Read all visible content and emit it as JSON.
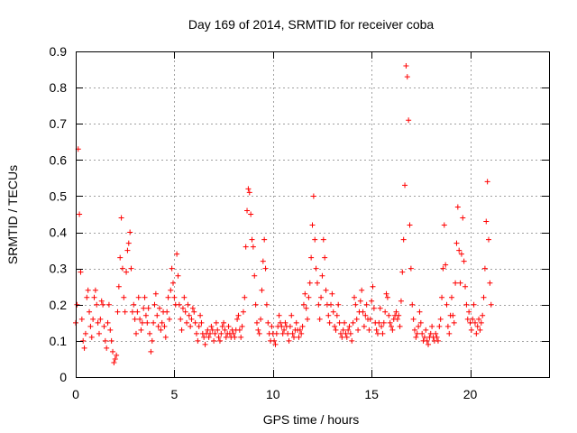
{
  "chart_data": {
    "type": "scatter",
    "title": "Day 169 of 2014, SRMTID for receiver coba",
    "xlabel": "GPS time / hours",
    "ylabel": "SRMTID / TECUs",
    "xlim": [
      0,
      24
    ],
    "ylim": [
      0,
      0.9
    ],
    "xticks": [
      0,
      5,
      10,
      15,
      20
    ],
    "yticks": [
      0,
      0.1,
      0.2,
      0.3,
      0.4,
      0.5,
      0.6,
      0.7,
      0.8,
      0.9
    ],
    "xtick_labels": [
      "0",
      "5",
      "10",
      "15",
      "20"
    ],
    "ytick_labels": [
      "0",
      "0.1",
      "0.2",
      "0.3",
      "0.4",
      "0.5",
      "0.6",
      "0.7",
      "0.8",
      "0.9"
    ],
    "grid": true,
    "marker": "+",
    "series": [
      {
        "name": "SRMTID",
        "color": "#ff0000",
        "x_start": 0.0,
        "x_step": 0.0625,
        "values": [
          0.15,
          0.2,
          0.63,
          0.45,
          0.29,
          0.16,
          0.1,
          0.08,
          0.12,
          0.22,
          0.24,
          0.18,
          0.14,
          0.11,
          0.16,
          0.22,
          0.24,
          0.2,
          0.15,
          0.12,
          0.16,
          0.21,
          0.2,
          0.14,
          0.1,
          0.08,
          0.15,
          0.2,
          0.13,
          0.1,
          0.07,
          0.04,
          0.05,
          0.06,
          0.18,
          0.25,
          0.33,
          0.44,
          0.3,
          0.22,
          0.18,
          0.29,
          0.35,
          0.37,
          0.4,
          0.3,
          0.18,
          0.2,
          0.16,
          0.12,
          0.18,
          0.22,
          0.16,
          0.13,
          0.15,
          0.19,
          0.22,
          0.17,
          0.15,
          0.19,
          0.12,
          0.07,
          0.1,
          0.15,
          0.2,
          0.23,
          0.17,
          0.14,
          0.19,
          0.13,
          0.15,
          0.18,
          0.14,
          0.11,
          0.18,
          0.22,
          0.16,
          0.24,
          0.3,
          0.26,
          0.22,
          0.2,
          0.34,
          0.28,
          0.2,
          0.16,
          0.13,
          0.19,
          0.22,
          0.18,
          0.15,
          0.2,
          0.17,
          0.14,
          0.16,
          0.19,
          0.18,
          0.15,
          0.12,
          0.1,
          0.14,
          0.17,
          0.15,
          0.12,
          0.11,
          0.09,
          0.12,
          0.13,
          0.11,
          0.12,
          0.14,
          0.13,
          0.1,
          0.12,
          0.15,
          0.13,
          0.11,
          0.1,
          0.12,
          0.14,
          0.15,
          0.13,
          0.11,
          0.12,
          0.14,
          0.12,
          0.11,
          0.13,
          0.12,
          0.11,
          0.13,
          0.16,
          0.17,
          0.13,
          0.11,
          0.14,
          0.18,
          0.22,
          0.36,
          0.46,
          0.52,
          0.51,
          0.45,
          0.38,
          0.36,
          0.28,
          0.2,
          0.15,
          0.13,
          0.12,
          0.16,
          0.24,
          0.32,
          0.38,
          0.3,
          0.2,
          0.15,
          0.12,
          0.1,
          0.14,
          0.12,
          0.1,
          0.09,
          0.12,
          0.14,
          0.17,
          0.15,
          0.14,
          0.12,
          0.13,
          0.15,
          0.14,
          0.12,
          0.1,
          0.14,
          0.17,
          0.12,
          0.11,
          0.13,
          0.15,
          0.13,
          0.11,
          0.13,
          0.12,
          0.14,
          0.2,
          0.23,
          0.19,
          0.16,
          0.22,
          0.26,
          0.33,
          0.42,
          0.5,
          0.38,
          0.3,
          0.26,
          0.2,
          0.16,
          0.22,
          0.28,
          0.38,
          0.33,
          0.24,
          0.2,
          0.17,
          0.15,
          0.2,
          0.23,
          0.18,
          0.14,
          0.13,
          0.17,
          0.2,
          0.15,
          0.12,
          0.11,
          0.13,
          0.15,
          0.12,
          0.11,
          0.13,
          0.14,
          0.12,
          0.1,
          0.15,
          0.22,
          0.2,
          0.16,
          0.13,
          0.18,
          0.21,
          0.24,
          0.18,
          0.14,
          0.17,
          0.2,
          0.16,
          0.13,
          0.16,
          0.21,
          0.25,
          0.19,
          0.15,
          0.13,
          0.12,
          0.15,
          0.19,
          0.14,
          0.12,
          0.15,
          0.18,
          0.23,
          0.22,
          0.17,
          0.15,
          0.14,
          0.13,
          0.16,
          0.17,
          0.18,
          0.16,
          0.17,
          0.14,
          0.21,
          0.29,
          0.38,
          0.53,
          0.86,
          0.83,
          0.71,
          0.42,
          0.3,
          0.2,
          0.16,
          0.13,
          0.11,
          0.12,
          0.14,
          0.18,
          0.15,
          0.12,
          0.1,
          0.11,
          0.13,
          0.1,
          0.09,
          0.11,
          0.12,
          0.14,
          0.11,
          0.1,
          0.12,
          0.11,
          0.1,
          0.14,
          0.16,
          0.22,
          0.3,
          0.42,
          0.31,
          0.2,
          0.14,
          0.12,
          0.17,
          0.22,
          0.17,
          0.15,
          0.26,
          0.37,
          0.47,
          0.35,
          0.26,
          0.34,
          0.44,
          0.32,
          0.25,
          0.2,
          0.16,
          0.18,
          0.15,
          0.13,
          0.16,
          0.2,
          0.15,
          0.12,
          0.14,
          0.16,
          0.13,
          0.15,
          0.17,
          0.22,
          0.3,
          0.43,
          0.54,
          0.38,
          0.26,
          0.2
        ]
      }
    ]
  }
}
